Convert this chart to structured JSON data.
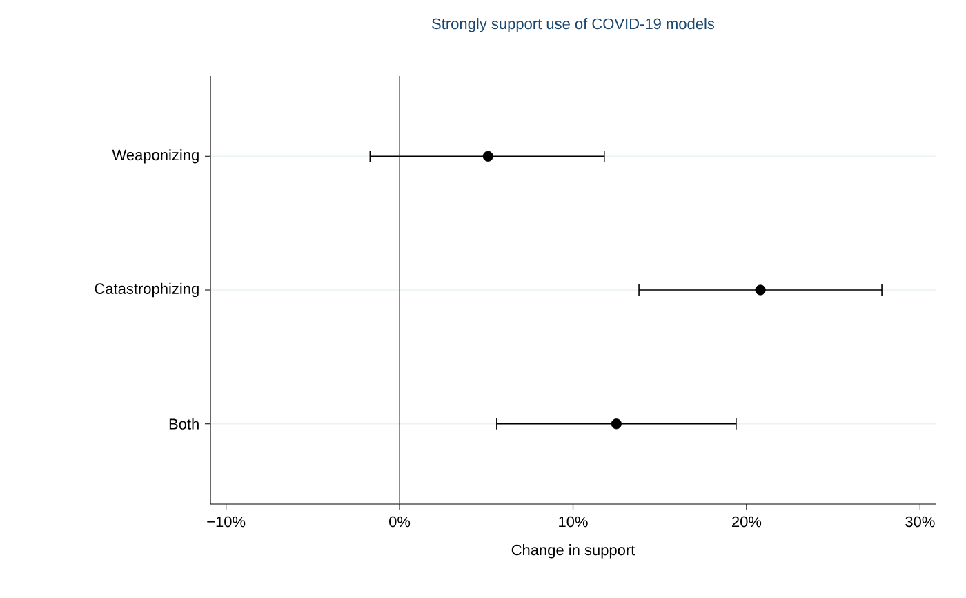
{
  "chart_data": {
    "type": "scatter",
    "orientation": "horizontal",
    "title": "Strongly support use of COVID-19 models",
    "xlabel": "Change in support",
    "categories": [
      "Weaponizing",
      "Catastrophizing",
      "Both"
    ],
    "values": [
      5.1,
      20.8,
      12.5
    ],
    "errors": [
      [
        -1.7,
        11.8
      ],
      [
        13.8,
        27.8
      ],
      [
        5.6,
        19.4
      ]
    ],
    "color": "#000000",
    "grid": "y",
    "xlim": [
      -10.9,
      30.9
    ],
    "xticks": [
      {
        "value": -10,
        "label": "−10%"
      },
      {
        "value": 0,
        "label": "0%"
      },
      {
        "value": 10,
        "label": "10%"
      },
      {
        "value": 20,
        "label": "20%"
      },
      {
        "value": 30,
        "label": "30%"
      }
    ],
    "ref_lines": [
      {
        "axis": "x",
        "value": 0,
        "color": "#c10534"
      }
    ]
  }
}
